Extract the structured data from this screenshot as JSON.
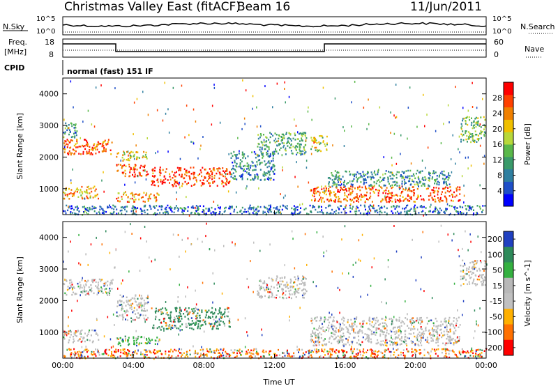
{
  "header": {
    "title": "Christmas Valley East (fitACF)",
    "beam": "Beam 16",
    "date": "11/Jun/2011"
  },
  "panels": {
    "nsky": {
      "label": "N.Sky",
      "ticks_right": [
        "10^5",
        "10^0"
      ],
      "right_label": "N.Search",
      "ticks_left": [
        "10^5",
        "10^0"
      ]
    },
    "freq": {
      "label_line1": "Freq.",
      "label_line2": "[MHz]",
      "left_ticks": [
        "18",
        "8"
      ],
      "right_ticks": [
        "60",
        "0"
      ],
      "right_label": "Nave"
    },
    "cpid": {
      "label": "CPID",
      "text": "normal (fast) 151 IF"
    }
  },
  "chart_data": [
    {
      "type": "heatmap",
      "title": "",
      "ylabel": "Slant Range [km]",
      "xlabel": "",
      "x_ticks": [
        "00:00",
        "04:00",
        "08:00",
        "12:00",
        "16:00",
        "20:00",
        "00:00"
      ],
      "y_ticks": [
        "1000",
        "2000",
        "3000",
        "4000"
      ],
      "ylim": [
        180,
        4500
      ],
      "xlim_hours": [
        0,
        24
      ],
      "colorbar": {
        "label": "Power [dB]",
        "ticks": [
          "4",
          "8",
          "12",
          "16",
          "20",
          "24",
          "28"
        ],
        "colors": [
          "#0000ff",
          "#1f4fc8",
          "#2f7fa0",
          "#3a9a6a",
          "#5ab84a",
          "#b8d83a",
          "#f0c000",
          "#f08000",
          "#ff4000",
          "#ff0000"
        ]
      },
      "regions": [
        {
          "t0": 0.0,
          "t1": 2.8,
          "r0": 2100,
          "r1": 2600,
          "level": 0.85
        },
        {
          "t0": 0.0,
          "t1": 0.8,
          "r0": 2600,
          "r1": 3100,
          "level": 0.3
        },
        {
          "t0": 0.0,
          "t1": 2.0,
          "r0": 700,
          "r1": 1100,
          "level": 0.7
        },
        {
          "t0": 3.0,
          "t1": 4.8,
          "r0": 1400,
          "r1": 1800,
          "level": 0.9
        },
        {
          "t0": 3.0,
          "t1": 4.8,
          "r0": 1900,
          "r1": 2200,
          "level": 0.6
        },
        {
          "t0": 3.0,
          "t1": 5.5,
          "r0": 600,
          "r1": 900,
          "level": 0.75
        },
        {
          "t0": 5.0,
          "t1": 9.5,
          "r0": 1100,
          "r1": 1700,
          "level": 0.9
        },
        {
          "t0": 9.5,
          "t1": 12.0,
          "r0": 1300,
          "r1": 2200,
          "level": 0.25
        },
        {
          "t0": 11.0,
          "t1": 13.8,
          "r0": 2100,
          "r1": 2800,
          "level": 0.35
        },
        {
          "t0": 14.0,
          "t1": 15.0,
          "r0": 2200,
          "r1": 2700,
          "level": 0.55
        },
        {
          "t0": 14.0,
          "t1": 22.5,
          "r0": 600,
          "r1": 1100,
          "level": 0.85
        },
        {
          "t0": 15.0,
          "t1": 22.0,
          "r0": 1100,
          "r1": 1600,
          "level": 0.3
        },
        {
          "t0": 22.5,
          "t1": 24.0,
          "r0": 2500,
          "r1": 3300,
          "level": 0.45
        },
        {
          "t0": 0.0,
          "t1": 24.0,
          "r0": 200,
          "r1": 500,
          "level": 0.2
        }
      ]
    },
    {
      "type": "heatmap",
      "title": "",
      "ylabel": "Slant Range [km]",
      "xlabel": "Time UT",
      "x_ticks": [
        "00:00",
        "04:00",
        "08:00",
        "12:00",
        "16:00",
        "20:00",
        "00:00"
      ],
      "y_ticks": [
        "1000",
        "2000",
        "3000",
        "4000"
      ],
      "ylim": [
        180,
        4500
      ],
      "xlim_hours": [
        0,
        24
      ],
      "colorbar": {
        "label": "Velocity [m s^-1]",
        "ticks": [
          "200",
          "100",
          "50",
          "15",
          "-15",
          "-50",
          "-100",
          "-200"
        ],
        "colors": [
          "#2040c0",
          "#2e8a5a",
          "#34b040",
          "#b8b8b8",
          "#c0c0c0",
          "#ffb000",
          "#ff7000",
          "#ff0000"
        ]
      },
      "regions": [
        {
          "t0": 0.0,
          "t1": 2.8,
          "r0": 2200,
          "r1": 2700,
          "level": 0.5
        },
        {
          "t0": 0.0,
          "t1": 2.0,
          "r0": 700,
          "r1": 1100,
          "level": 0.5
        },
        {
          "t0": 3.0,
          "t1": 4.8,
          "r0": 1400,
          "r1": 2200,
          "level": 0.5
        },
        {
          "t0": 5.0,
          "t1": 9.5,
          "r0": 1100,
          "r1": 1800,
          "level": 0.85
        },
        {
          "t0": 3.0,
          "t1": 5.5,
          "r0": 600,
          "r1": 900,
          "level": 0.75
        },
        {
          "t0": 11.0,
          "t1": 13.8,
          "r0": 2100,
          "r1": 2800,
          "level": 0.5
        },
        {
          "t0": 14.0,
          "t1": 22.5,
          "r0": 600,
          "r1": 1500,
          "level": 0.5
        },
        {
          "t0": 22.5,
          "t1": 24.0,
          "r0": 2500,
          "r1": 3300,
          "level": 0.5
        },
        {
          "t0": 0.0,
          "t1": 24.0,
          "r0": 200,
          "r1": 500,
          "level": 0.1
        }
      ]
    }
  ]
}
